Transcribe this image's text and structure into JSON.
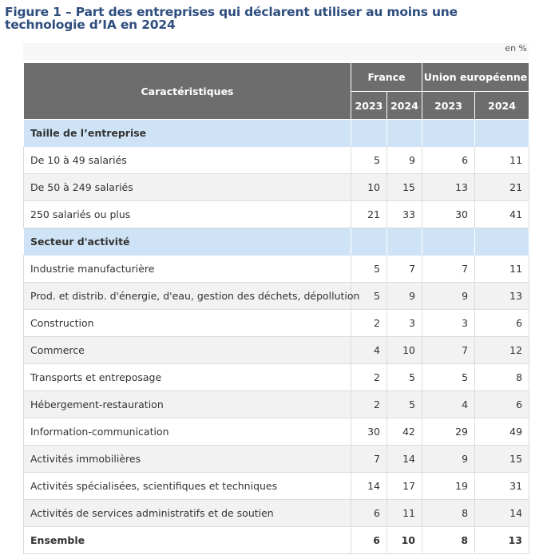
{
  "figure": {
    "title": "Figure 1 – Part des entreprises qui déclarent utiliser au moins une technologie d’IA en 2024",
    "unit": "en %"
  },
  "table": {
    "header": {
      "characteristics": "Caractéristiques",
      "group1": "France",
      "group2": "Union européenne",
      "years": [
        "2023",
        "2024",
        "2023",
        "2024"
      ]
    },
    "sections": [
      {
        "label": "Taille de l’entreprise",
        "rows": [
          {
            "label": "De 10 à 49 salariés",
            "values": [
              "5",
              "9",
              "6",
              "11"
            ]
          },
          {
            "label": "De 50 à 249 salariés",
            "values": [
              "10",
              "15",
              "13",
              "21"
            ]
          },
          {
            "label": "250 salariés ou plus",
            "values": [
              "21",
              "33",
              "30",
              "41"
            ]
          }
        ]
      },
      {
        "label": "Secteur d'activité",
        "rows": [
          {
            "label": "Industrie manufacturière",
            "values": [
              "5",
              "7",
              "7",
              "11"
            ]
          },
          {
            "label": "Prod. et distrib. d'énergie, d'eau, gestion des déchets, dépollution",
            "values": [
              "5",
              "9",
              "9",
              "13"
            ]
          },
          {
            "label": "Construction",
            "values": [
              "2",
              "3",
              "3",
              "6"
            ]
          },
          {
            "label": "Commerce",
            "values": [
              "4",
              "10",
              "7",
              "12"
            ]
          },
          {
            "label": "Transports et entreposage",
            "values": [
              "2",
              "5",
              "5",
              "8"
            ]
          },
          {
            "label": "Hébergement-restauration",
            "values": [
              "2",
              "5",
              "4",
              "6"
            ]
          },
          {
            "label": "Information-communication",
            "values": [
              "30",
              "42",
              "29",
              "49"
            ]
          },
          {
            "label": "Activités immobilières",
            "values": [
              "7",
              "14",
              "9",
              "15"
            ]
          },
          {
            "label": "Activités spécialisées, scientifiques et techniques",
            "values": [
              "14",
              "17",
              "19",
              "31"
            ]
          },
          {
            "label": "Activités de services administratifs et de soutien",
            "values": [
              "6",
              "11",
              "8",
              "14"
            ]
          }
        ]
      }
    ],
    "total": {
      "label": "Ensemble",
      "values": [
        "6",
        "10",
        "8",
        "13"
      ]
    }
  },
  "colors": {
    "title": "#2e4e7e",
    "header_bg": "#6d6d6d",
    "section_bg": "#cfe3f6",
    "alt_row_bg": "#f2f2f2"
  }
}
